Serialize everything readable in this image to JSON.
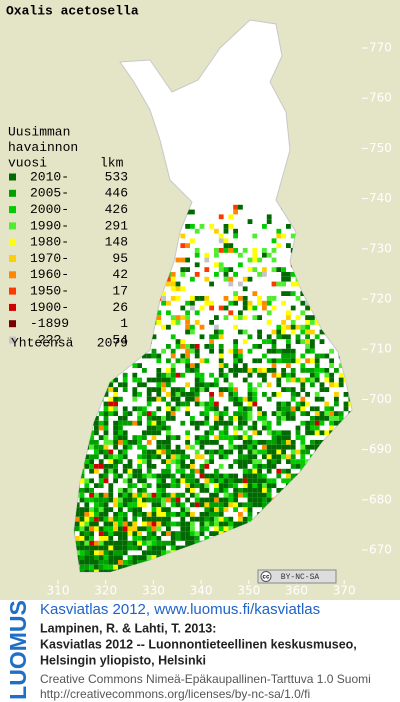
{
  "map": {
    "title": "Oxalis acetosella",
    "legend": {
      "header": [
        "Uusimman",
        "havainnon",
        "vuosi"
      ],
      "count_header": "lkm",
      "rows": [
        {
          "label": "2010-",
          "count": 533,
          "color": "#006a00"
        },
        {
          "label": "2005-",
          "count": 446,
          "color": "#00a000"
        },
        {
          "label": "2000-",
          "count": 426,
          "color": "#00cc00"
        },
        {
          "label": "1990-",
          "count": 291,
          "color": "#50ec30"
        },
        {
          "label": "1980-",
          "count": 148,
          "color": "#ffff00"
        },
        {
          "label": "1970-",
          "count": 95,
          "color": "#ffd000"
        },
        {
          "label": "1960-",
          "count": 42,
          "color": "#ff8800"
        },
        {
          "label": "1950-",
          "count": 17,
          "color": "#ff3800"
        },
        {
          "label": "1900-",
          "count": 26,
          "color": "#d00000"
        },
        {
          "label": "-1899",
          "count": 1,
          "color": "#7a0000"
        },
        {
          "label": "???",
          "count": 54,
          "color": "#c4c4c4"
        }
      ],
      "total_label": "Yhteensä",
      "total": 2079
    },
    "x_ticks": [
      310,
      320,
      330,
      340,
      350,
      360,
      370
    ],
    "y_ticks": [
      770,
      760,
      750,
      740,
      730,
      720,
      710,
      700,
      690,
      680,
      670
    ],
    "license_badge": {
      "icon": "cc",
      "text": "BY-NC-SA"
    }
  },
  "footer": {
    "logo": "LUOMUS",
    "link": "Kasviatlas 2012, www.luomus.fi/kasviatlas",
    "citation": [
      "Lampinen, R. & Lahti, T. 2013:",
      "Kasviatlas 2012 -- Luonnontieteellinen keskusmuseo,",
      "Helsingin yliopisto, Helsinki"
    ],
    "license": [
      "Creative Commons Nimeä-Epäkaupallinen-Tarttuva 1.0 Suomi",
      "http://creativecommons.org/licenses/by-nc-sa/1.0/fi"
    ]
  }
}
